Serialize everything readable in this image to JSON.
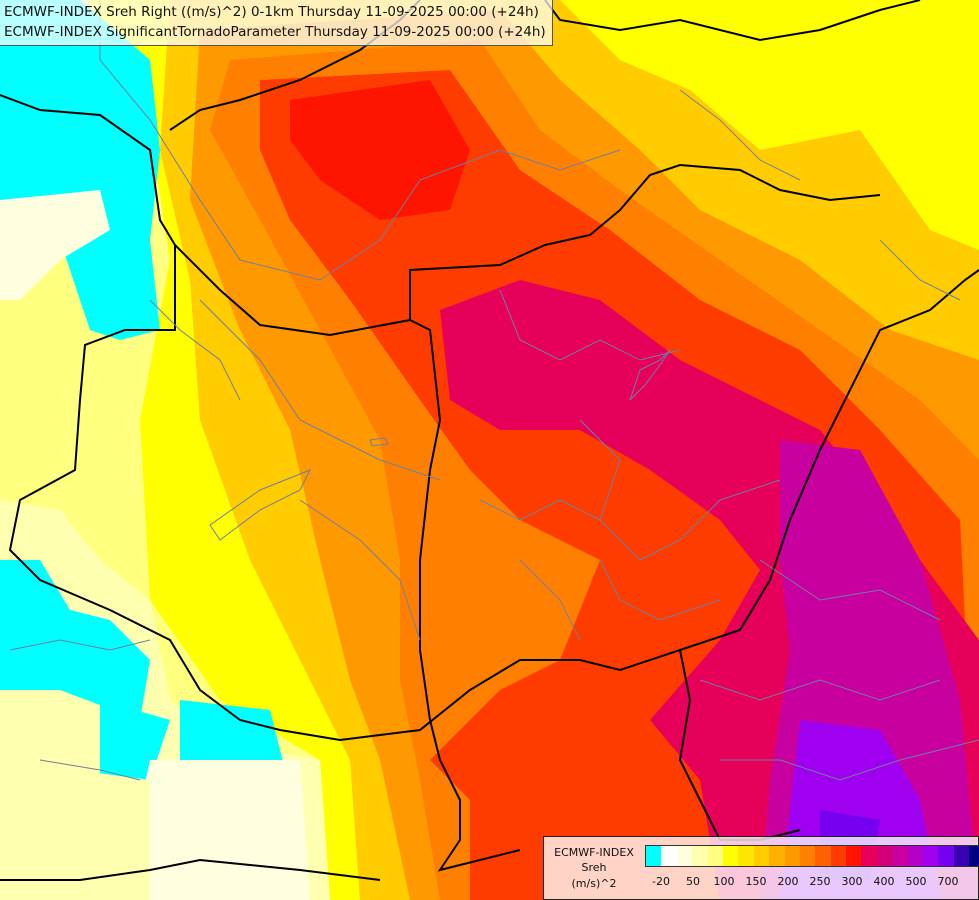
{
  "title": {
    "line1": "ECMWF-INDEX Sreh Right ((m/s)^2) 0-1km Thursday 11-09-2025 00:00 (+24h)",
    "line2": "ECMWF-INDEX SignificantTornadoParameter Thursday 11-09-2025 00:00 (+24h)"
  },
  "legend": {
    "label_line1": "ECMWF-INDEX",
    "label_line2": "Sreh",
    "label_line3": "(m/s)^2",
    "colors": [
      "#00ffff",
      "#ffffff",
      "#ffffe0",
      "#ffffb0",
      "#ffff80",
      "#ffff00",
      "#ffe600",
      "#ffcc00",
      "#ffb000",
      "#ff9900",
      "#ff8000",
      "#ff6000",
      "#ff3c00",
      "#ff1400",
      "#e6005a",
      "#d4007a",
      "#c800a0",
      "#b400c8",
      "#a000f0",
      "#7800f0",
      "#3c00b4",
      "#000080"
    ],
    "ticks": [
      "-20",
      "50",
      "100",
      "150",
      "200",
      "250",
      "300",
      "400",
      "500",
      "700"
    ]
  }
}
